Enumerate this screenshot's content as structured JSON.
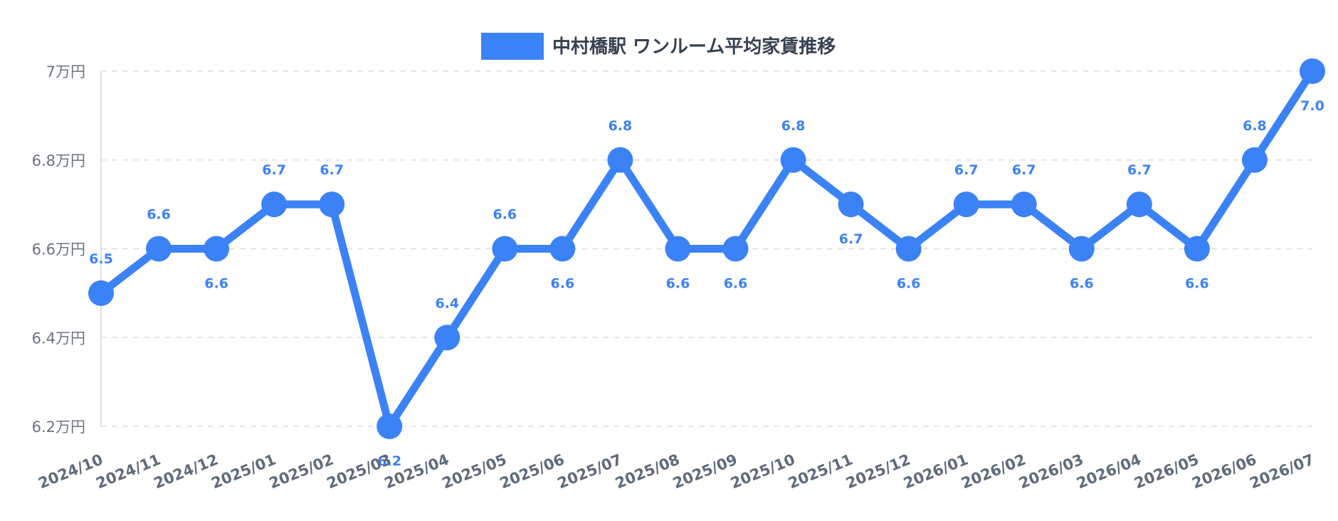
{
  "chart_data": {
    "type": "line",
    "title": "",
    "xlabel": "",
    "ylabel": "",
    "legend_position": "top-center",
    "grid": true,
    "ylim": [
      6.2,
      7.0
    ],
    "y_ticks": [
      6.2,
      6.4,
      6.6,
      6.8,
      7.0
    ],
    "y_tick_labels": [
      "6.2万円",
      "6.4万円",
      "6.6万円",
      "6.8万円",
      "7万円"
    ],
    "colors": {
      "series": "#3b82f6",
      "grid": "#dcdfe4",
      "axis": "#d1d5db"
    },
    "categories": [
      "2024/10",
      "2024/11",
      "2024/12",
      "2025/01",
      "2025/02",
      "2025/03",
      "2025/04",
      "2025/05",
      "2025/06",
      "2025/07",
      "2025/08",
      "2025/09",
      "2025/10",
      "2025/11",
      "2025/12",
      "2026/01",
      "2026/02",
      "2026/03",
      "2026/04",
      "2026/05",
      "2026/06",
      "2026/07"
    ],
    "series": [
      {
        "name": "中村橋駅 ワンルーム平均家賃推移",
        "values": [
          6.5,
          6.6,
          6.6,
          6.7,
          6.7,
          6.2,
          6.4,
          6.6,
          6.6,
          6.8,
          6.6,
          6.6,
          6.8,
          6.7,
          6.6,
          6.7,
          6.7,
          6.6,
          6.7,
          6.6,
          6.8,
          7.0
        ],
        "data_labels": [
          "6.5",
          "6.6",
          "6.6",
          "6.7",
          "6.7",
          "6.2",
          "6.4",
          "6.6",
          "6.6",
          "6.8",
          "6.6",
          "6.6",
          "6.8",
          "6.7",
          "6.6",
          "6.7",
          "6.7",
          "6.6",
          "6.7",
          "6.6",
          "6.8",
          "7.0"
        ]
      }
    ]
  }
}
